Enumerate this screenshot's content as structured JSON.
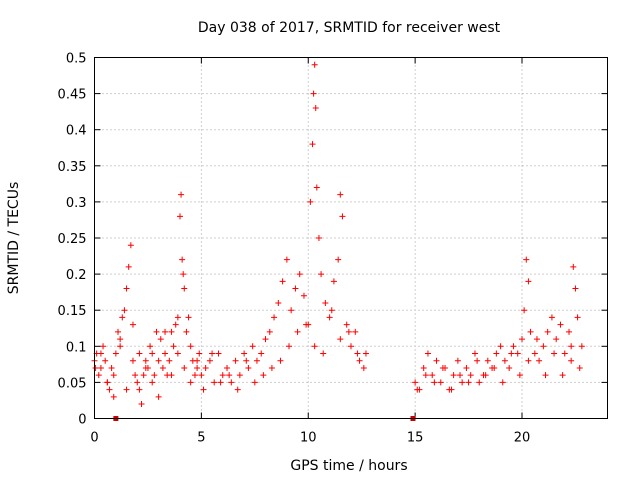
{
  "chart_data": {
    "type": "scatter",
    "title": "Day 038 of 2017, SRMTID for receiver west",
    "xlabel": "GPS time / hours",
    "ylabel": "SRMTID / TECUs",
    "xlim": [
      0,
      24
    ],
    "ylim": [
      0,
      0.5
    ],
    "xticks": [
      0,
      5,
      10,
      15,
      20
    ],
    "xtick_labels": [
      "0",
      "5",
      "10",
      "15",
      "20"
    ],
    "yticks": [
      0,
      0.05,
      0.1,
      0.15,
      0.2,
      0.25,
      0.3,
      0.35,
      0.4,
      0.45,
      0.5
    ],
    "ytick_labels": [
      "0",
      "0.05",
      "0.1",
      "0.15",
      "0.2",
      "0.25",
      "0.3",
      "0.35",
      "0.4",
      "0.45",
      "0.5"
    ],
    "grid": true,
    "marker": "plus",
    "color": "#ff0000",
    "gap_markers": {
      "color": "#cc0000",
      "x": [
        1.0,
        14.9
      ],
      "y": [
        0,
        0
      ]
    },
    "series": [
      {
        "name": "SRMTID",
        "x": [
          0.0,
          0.1,
          0.2,
          0.3,
          0.4,
          0.5,
          0.6,
          0.7,
          0.8,
          0.9,
          1.0,
          1.1,
          1.2,
          1.3,
          1.4,
          1.5,
          1.6,
          1.7,
          1.8,
          1.9,
          2.0,
          2.1,
          2.2,
          2.3,
          2.4,
          2.5,
          2.6,
          2.7,
          2.8,
          2.9,
          3.0,
          3.1,
          3.2,
          3.3,
          3.4,
          3.5,
          3.6,
          3.7,
          3.8,
          3.9,
          4.0,
          4.05,
          4.1,
          4.15,
          4.2,
          4.3,
          4.4,
          4.5,
          4.6,
          4.7,
          4.8,
          4.9,
          5.0,
          5.2,
          5.4,
          5.6,
          5.8,
          6.0,
          6.2,
          6.4,
          6.6,
          6.8,
          7.0,
          7.2,
          7.4,
          7.6,
          7.8,
          8.0,
          8.2,
          8.4,
          8.6,
          8.8,
          9.0,
          9.2,
          9.4,
          9.6,
          9.8,
          10.0,
          10.1,
          10.2,
          10.25,
          10.3,
          10.35,
          10.4,
          10.5,
          10.6,
          10.8,
          11.0,
          11.2,
          11.4,
          11.5,
          11.6,
          11.8,
          12.0,
          12.2,
          12.4,
          12.6,
          12.7,
          15.0,
          15.2,
          15.4,
          15.6,
          15.8,
          16.0,
          16.2,
          16.4,
          16.6,
          16.8,
          17.0,
          17.2,
          17.4,
          17.6,
          17.8,
          18.0,
          18.2,
          18.4,
          18.6,
          18.8,
          19.0,
          19.2,
          19.4,
          19.6,
          19.8,
          20.0,
          20.1,
          20.2,
          20.3,
          20.4,
          20.6,
          20.8,
          21.0,
          21.2,
          21.4,
          21.6,
          21.8,
          22.0,
          22.2,
          22.3,
          22.4,
          22.5,
          22.6,
          22.8,
          0.05,
          0.3,
          0.6,
          0.9,
          1.2,
          1.5,
          1.8,
          2.1,
          2.4,
          2.7,
          3.0,
          3.3,
          3.6,
          3.9,
          4.2,
          4.5,
          4.8,
          5.1,
          5.5,
          5.9,
          6.3,
          6.7,
          7.1,
          7.5,
          7.9,
          8.3,
          8.7,
          9.1,
          9.5,
          9.9,
          10.3,
          10.7,
          11.1,
          11.5,
          11.9,
          12.3,
          15.1,
          15.5,
          15.9,
          16.3,
          16.7,
          17.1,
          17.5,
          17.9,
          18.3,
          18.7,
          19.1,
          19.5,
          19.9,
          20.3,
          20.7,
          21.1,
          21.5,
          21.9,
          22.3,
          22.7
        ],
        "y": [
          0.08,
          0.09,
          0.06,
          0.07,
          0.1,
          0.08,
          0.05,
          0.04,
          0.07,
          0.06,
          0.09,
          0.12,
          0.1,
          0.14,
          0.15,
          0.18,
          0.21,
          0.24,
          0.08,
          0.06,
          0.05,
          0.04,
          0.02,
          0.06,
          0.08,
          0.07,
          0.1,
          0.09,
          0.06,
          0.12,
          0.08,
          0.11,
          0.07,
          0.09,
          0.06,
          0.08,
          0.12,
          0.1,
          0.13,
          0.14,
          0.28,
          0.31,
          0.22,
          0.2,
          0.18,
          0.12,
          0.14,
          0.1,
          0.08,
          0.06,
          0.07,
          0.09,
          0.06,
          0.07,
          0.08,
          0.05,
          0.09,
          0.06,
          0.07,
          0.05,
          0.08,
          0.06,
          0.09,
          0.07,
          0.1,
          0.08,
          0.09,
          0.11,
          0.12,
          0.14,
          0.16,
          0.19,
          0.22,
          0.15,
          0.18,
          0.2,
          0.17,
          0.13,
          0.3,
          0.38,
          0.45,
          0.49,
          0.43,
          0.32,
          0.25,
          0.2,
          0.16,
          0.14,
          0.19,
          0.22,
          0.31,
          0.28,
          0.13,
          0.1,
          0.12,
          0.08,
          0.07,
          0.09,
          0.05,
          0.04,
          0.07,
          0.09,
          0.06,
          0.08,
          0.05,
          0.07,
          0.04,
          0.06,
          0.08,
          0.05,
          0.07,
          0.06,
          0.09,
          0.05,
          0.06,
          0.08,
          0.07,
          0.09,
          0.1,
          0.08,
          0.07,
          0.1,
          0.09,
          0.11,
          0.15,
          0.22,
          0.19,
          0.12,
          0.09,
          0.08,
          0.1,
          0.12,
          0.14,
          0.11,
          0.13,
          0.09,
          0.12,
          0.1,
          0.21,
          0.18,
          0.14,
          0.1,
          0.07,
          0.09,
          0.05,
          0.03,
          0.11,
          0.04,
          0.13,
          0.09,
          0.07,
          0.05,
          0.03,
          0.12,
          0.06,
          0.09,
          0.07,
          0.05,
          0.08,
          0.04,
          0.09,
          0.05,
          0.06,
          0.04,
          0.08,
          0.05,
          0.06,
          0.07,
          0.08,
          0.1,
          0.12,
          0.13,
          0.1,
          0.09,
          0.15,
          0.11,
          0.12,
          0.09,
          0.04,
          0.06,
          0.05,
          0.07,
          0.04,
          0.06,
          0.05,
          0.08,
          0.06,
          0.07,
          0.05,
          0.09,
          0.06,
          0.08,
          0.11,
          0.06,
          0.09,
          0.06,
          0.08,
          0.07
        ]
      }
    ]
  }
}
